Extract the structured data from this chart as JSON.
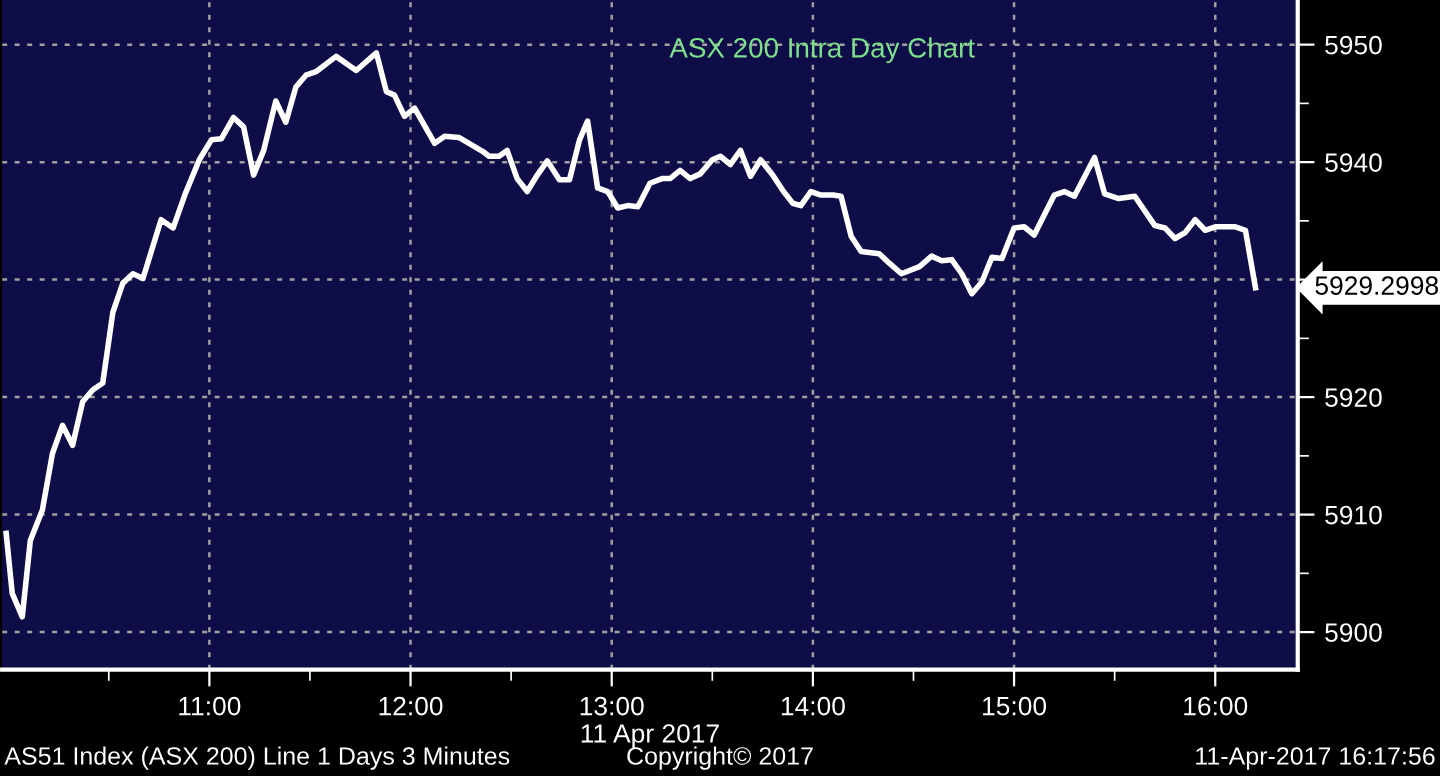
{
  "chart_data": {
    "type": "line",
    "title": "ASX 200 Intra Day Chart",
    "xlabel": "11 Apr 2017",
    "x": [
      9.99,
      10.02,
      10.07,
      10.11,
      10.17,
      10.22,
      10.27,
      10.32,
      10.37,
      10.42,
      10.47,
      10.52,
      10.57,
      10.62,
      10.67,
      10.76,
      10.82,
      10.88,
      10.95,
      11.01,
      11.06,
      11.12,
      11.17,
      11.22,
      11.27,
      11.33,
      11.38,
      11.43,
      11.48,
      11.53,
      11.63,
      11.73,
      11.83,
      11.88,
      11.92,
      11.97,
      12.02,
      12.12,
      12.17,
      12.24,
      12.36,
      12.39,
      12.44,
      12.48,
      12.53,
      12.58,
      12.63,
      12.68,
      12.74,
      12.79,
      12.84,
      12.88,
      12.93,
      12.98,
      13.03,
      13.08,
      13.13,
      13.19,
      13.25,
      13.29,
      13.34,
      13.39,
      13.44,
      13.5,
      13.54,
      13.59,
      13.64,
      13.69,
      13.74,
      13.8,
      13.85,
      13.9,
      13.94,
      13.99,
      14.04,
      14.1,
      14.14,
      14.19,
      14.24,
      14.33,
      14.38,
      14.44,
      14.53,
      14.59,
      14.64,
      14.69,
      14.74,
      14.79,
      14.84,
      14.89,
      14.94,
      15.0,
      15.05,
      15.1,
      15.2,
      15.25,
      15.3,
      15.4,
      15.45,
      15.52,
      15.6,
      15.7,
      15.75,
      15.8,
      15.85,
      15.9,
      15.95,
      16.0,
      16.1,
      16.15,
      16.2
    ],
    "series": [
      {
        "color": "#ffffff",
        "values": [
          5908.4,
          5903.3,
          5901.3,
          5907.8,
          5910.4,
          5915.2,
          5917.6,
          5915.9,
          5919.6,
          5920.6,
          5921.2,
          5927.2,
          5929.7,
          5930.5,
          5930.1,
          5935.1,
          5934.4,
          5937.3,
          5940.2,
          5941.9,
          5942.0,
          5943.8,
          5943.0,
          5938.9,
          5941.0,
          5945.2,
          5943.4,
          5946.4,
          5947.4,
          5947.7,
          5949.0,
          5947.8,
          5949.3,
          5946.0,
          5945.7,
          5943.9,
          5944.6,
          5941.6,
          5942.2,
          5942.1,
          5940.9,
          5940.5,
          5940.5,
          5941.0,
          5938.6,
          5937.5,
          5938.9,
          5940.1,
          5938.5,
          5938.5,
          5941.9,
          5943.5,
          5937.8,
          5937.5,
          5936.1,
          5936.3,
          5936.2,
          5938.2,
          5938.6,
          5938.6,
          5939.3,
          5938.6,
          5939.0,
          5940.2,
          5940.5,
          5939.8,
          5941.0,
          5938.8,
          5940.2,
          5938.9,
          5937.6,
          5936.5,
          5936.3,
          5937.5,
          5937.2,
          5937.2,
          5937.1,
          5933.7,
          5932.4,
          5932.2,
          5931.4,
          5930.5,
          5931.1,
          5932.0,
          5931.6,
          5931.7,
          5930.5,
          5928.8,
          5929.8,
          5931.9,
          5931.8,
          5934.4,
          5934.5,
          5933.8,
          5937.2,
          5937.5,
          5937.1,
          5940.4,
          5937.3,
          5936.9,
          5937.1,
          5934.6,
          5934.4,
          5933.5,
          5934.0,
          5935.1,
          5934.2,
          5934.5,
          5934.5,
          5934.2,
          5929.3
        ]
      }
    ],
    "xlim": [
      9.97,
      16.41
    ],
    "ylim": [
      5896.8,
      5953.8
    ],
    "xticks": [
      {
        "value": 10.5,
        "label": null
      },
      {
        "value": 11,
        "label": "11:00"
      },
      {
        "value": 11.5,
        "label": null
      },
      {
        "value": 12,
        "label": "12:00"
      },
      {
        "value": 12.5,
        "label": null
      },
      {
        "value": 13,
        "label": "13:00"
      },
      {
        "value": 13.5,
        "label": null
      },
      {
        "value": 14,
        "label": "14:00"
      },
      {
        "value": 14.5,
        "label": null
      },
      {
        "value": 15,
        "label": "15:00"
      },
      {
        "value": 15.5,
        "label": null
      },
      {
        "value": 16,
        "label": "16:00"
      }
    ],
    "yticks": [
      5900,
      {
        "value": 5905,
        "label": null
      },
      5910,
      {
        "value": 5915,
        "label": null
      },
      5920,
      {
        "value": 5925,
        "label": null
      },
      {
        "value": 5930,
        "label": null
      },
      {
        "value": 5935,
        "label": null
      },
      5940,
      {
        "value": 5945,
        "label": null
      },
      5950
    ],
    "grid": true,
    "legend": false,
    "line_style": "solid",
    "marker": "none",
    "annotations": [
      "5929.2998",
      "AS51 Index (ASX 200) Line 1 Days 3 Minutes",
      "Copyright© 2017",
      "11-Apr-2017 16:17:56"
    ]
  }
}
